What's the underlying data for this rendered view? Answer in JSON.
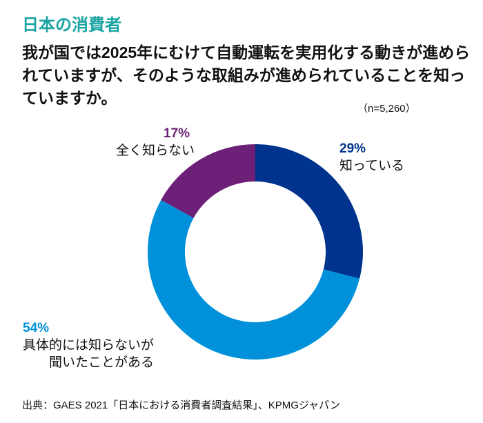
{
  "section_title": "日本の消費者",
  "question": "我が国では2025年にむけて自動運転を実用化する動きが進められていますが、そのような取組みが進められていることを知っていますか。",
  "sample_size": "（n=5,260）",
  "source": "出典：GAES 2021「日本における消費者調査結果」、KPMGジャパン",
  "chart_data": {
    "type": "pie",
    "donut": true,
    "start": "top, clockwise",
    "slices": [
      {
        "label": "知っている",
        "value": 29,
        "value_label": "29%",
        "color": "#00338D"
      },
      {
        "label_lines": [
          "具体的には知らないが",
          "聞いたことがある"
        ],
        "value": 54,
        "value_label": "54%",
        "color": "#0091DA"
      },
      {
        "label": "全く知らない",
        "value": 17,
        "value_label": "17%",
        "color": "#6D2077"
      }
    ]
  }
}
